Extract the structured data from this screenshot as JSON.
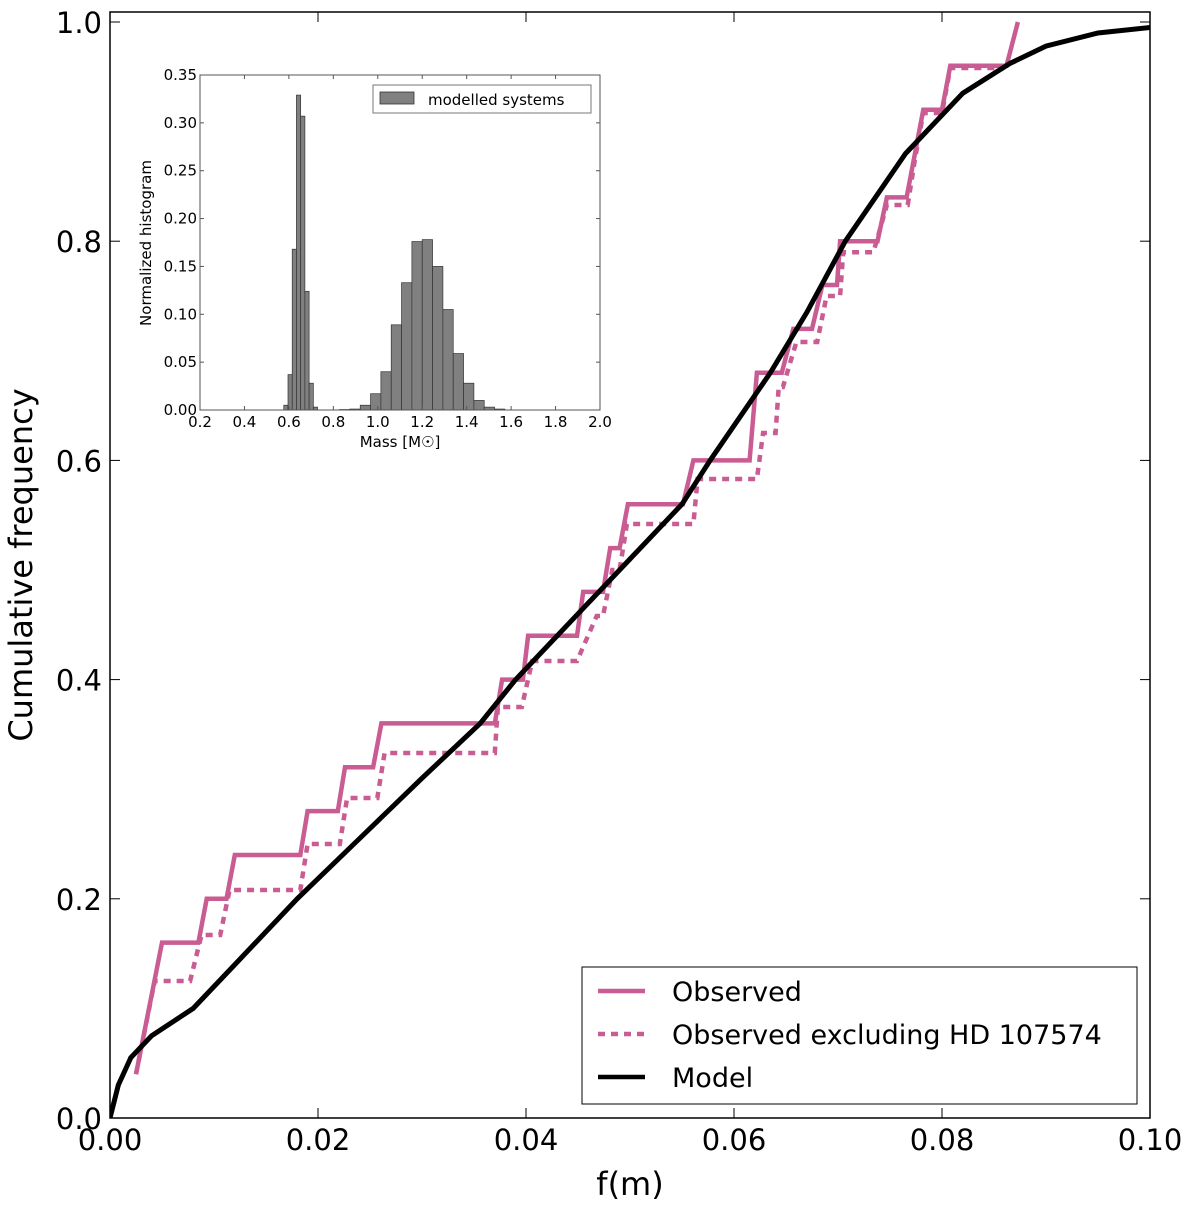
{
  "chart_data": [
    {
      "type": "line",
      "title": "",
      "xlabel": "f(m)",
      "ylabel": "Cumulative frequency",
      "xlim": [
        0,
        0.1
      ],
      "ylim": [
        0,
        1.0
      ],
      "xticks": [
        "0.00",
        "0.02",
        "0.04",
        "0.06",
        "0.08",
        "0.10"
      ],
      "yticks": [
        "0.0",
        "0.2",
        "0.4",
        "0.6",
        "0.8",
        "1.0"
      ],
      "grid": false,
      "legend_position": "bottom-right",
      "series": [
        {
          "name": "Observed",
          "style": "solid",
          "color": "#c95c92",
          "points": [
            [
              0.0025,
              0.04
            ],
            [
              0.005,
              0.16
            ],
            [
              0.0085,
              0.16
            ],
            [
              0.0093,
              0.2
            ],
            [
              0.0112,
              0.2
            ],
            [
              0.012,
              0.24
            ],
            [
              0.0183,
              0.24
            ],
            [
              0.019,
              0.28
            ],
            [
              0.0219,
              0.28
            ],
            [
              0.0226,
              0.32
            ],
            [
              0.0253,
              0.32
            ],
            [
              0.0261,
              0.36
            ],
            [
              0.037,
              0.36
            ],
            [
              0.0377,
              0.4
            ],
            [
              0.0397,
              0.4
            ],
            [
              0.0402,
              0.44
            ],
            [
              0.0449,
              0.44
            ],
            [
              0.0455,
              0.48
            ],
            [
              0.0474,
              0.48
            ],
            [
              0.0481,
              0.52
            ],
            [
              0.049,
              0.52
            ],
            [
              0.0498,
              0.56
            ],
            [
              0.0551,
              0.56
            ],
            [
              0.0561,
              0.6
            ],
            [
              0.0615,
              0.6
            ],
            [
              0.0622,
              0.68
            ],
            [
              0.0646,
              0.68
            ],
            [
              0.0657,
              0.72
            ],
            [
              0.0675,
              0.72
            ],
            [
              0.0685,
              0.76
            ],
            [
              0.0699,
              0.76
            ],
            [
              0.0702,
              0.8
            ],
            [
              0.0738,
              0.8
            ],
            [
              0.0747,
              0.84
            ],
            [
              0.0766,
              0.84
            ],
            [
              0.0782,
              0.92
            ],
            [
              0.08,
              0.92
            ],
            [
              0.0808,
              0.96
            ],
            [
              0.0862,
              0.96
            ],
            [
              0.0873,
              1.0
            ]
          ]
        },
        {
          "name": "Observed excluding HD 107574",
          "style": "dashed",
          "color": "#c95c92",
          "points": [
            [
              0.0025,
              0.04
            ],
            [
              0.0043,
              0.125
            ],
            [
              0.0077,
              0.125
            ],
            [
              0.0088,
              0.167
            ],
            [
              0.0106,
              0.167
            ],
            [
              0.0115,
              0.208
            ],
            [
              0.0183,
              0.208
            ],
            [
              0.019,
              0.25
            ],
            [
              0.0221,
              0.25
            ],
            [
              0.0228,
              0.292
            ],
            [
              0.0257,
              0.292
            ],
            [
              0.0264,
              0.333
            ],
            [
              0.037,
              0.333
            ],
            [
              0.0373,
              0.375
            ],
            [
              0.0396,
              0.375
            ],
            [
              0.0406,
              0.417
            ],
            [
              0.0449,
              0.417
            ],
            [
              0.0468,
              0.458
            ],
            [
              0.0474,
              0.458
            ],
            [
              0.0483,
              0.5
            ],
            [
              0.049,
              0.5
            ],
            [
              0.0497,
              0.542
            ],
            [
              0.0561,
              0.542
            ],
            [
              0.0565,
              0.583
            ],
            [
              0.0622,
              0.583
            ],
            [
              0.0628,
              0.625
            ],
            [
              0.064,
              0.625
            ],
            [
              0.0643,
              0.667
            ],
            [
              0.0647,
              0.667
            ],
            [
              0.066,
              0.708
            ],
            [
              0.068,
              0.708
            ],
            [
              0.0689,
              0.75
            ],
            [
              0.0702,
              0.75
            ],
            [
              0.0705,
              0.79
            ],
            [
              0.0734,
              0.79
            ],
            [
              0.0747,
              0.833
            ],
            [
              0.0767,
              0.833
            ],
            [
              0.0774,
              0.875
            ],
            [
              0.0782,
              0.917
            ],
            [
              0.08,
              0.917
            ],
            [
              0.0808,
              0.958
            ],
            [
              0.0856,
              0.958
            ]
          ]
        },
        {
          "name": "Model",
          "style": "solid",
          "color": "#000000",
          "points": [
            [
              0,
              0
            ],
            [
              0.0008,
              0.03
            ],
            [
              0.002,
              0.055
            ],
            [
              0.004,
              0.075
            ],
            [
              0.008,
              0.1
            ],
            [
              0.012,
              0.14
            ],
            [
              0.018,
              0.2
            ],
            [
              0.024,
              0.255
            ],
            [
              0.03,
              0.31
            ],
            [
              0.0356,
              0.36
            ],
            [
              0.039,
              0.4
            ],
            [
              0.045,
              0.46
            ],
            [
              0.05,
              0.51
            ],
            [
              0.055,
              0.56
            ],
            [
              0.0577,
              0.6
            ],
            [
              0.0635,
              0.68
            ],
            [
              0.067,
              0.735
            ],
            [
              0.0707,
              0.8
            ],
            [
              0.0765,
              0.88
            ],
            [
              0.082,
              0.935
            ],
            [
              0.0865,
              0.962
            ],
            [
              0.09,
              0.978
            ],
            [
              0.095,
              0.99
            ],
            [
              0.1,
              0.995
            ]
          ]
        }
      ]
    },
    {
      "type": "bar",
      "title": "",
      "xlabel": "Mass [M☉]",
      "xlabel_text": "Mass [M",
      "xlabel_sub": "☉",
      "xlabel_end": "]",
      "ylabel": "Normalized histogram",
      "xlim": [
        0.2,
        2.0
      ],
      "ylim": [
        0,
        0.35
      ],
      "xticks": [
        "0.2",
        "0.4",
        "0.6",
        "0.8",
        "1.0",
        "1.2",
        "1.4",
        "1.6",
        "1.8",
        "2.0"
      ],
      "yticks": [
        "0.00",
        "0.05",
        "0.10",
        "0.15",
        "0.20",
        "0.25",
        "0.30",
        "0.35"
      ],
      "legend_position": "top-right",
      "legend": "modelled systems",
      "bar_color": "#808080",
      "bins": [
        {
          "left": 0.577,
          "width": 0.019,
          "value": 0.005
        },
        {
          "left": 0.596,
          "width": 0.019,
          "value": 0.037
        },
        {
          "left": 0.615,
          "width": 0.019,
          "value": 0.168
        },
        {
          "left": 0.634,
          "width": 0.019,
          "value": 0.329
        },
        {
          "left": 0.653,
          "width": 0.019,
          "value": 0.307
        },
        {
          "left": 0.672,
          "width": 0.019,
          "value": 0.124
        },
        {
          "left": 0.691,
          "width": 0.019,
          "value": 0.028
        },
        {
          "left": 0.71,
          "width": 0.019,
          "value": 0.003
        },
        {
          "left": 0.828,
          "width": 0.0465,
          "value": 0.0005
        },
        {
          "left": 0.8745,
          "width": 0.0465,
          "value": 0.001
        },
        {
          "left": 0.921,
          "width": 0.0465,
          "value": 0.005
        },
        {
          "left": 0.9675,
          "width": 0.0465,
          "value": 0.017
        },
        {
          "left": 1.014,
          "width": 0.0465,
          "value": 0.04
        },
        {
          "left": 1.0605,
          "width": 0.0465,
          "value": 0.089
        },
        {
          "left": 1.107,
          "width": 0.0465,
          "value": 0.133
        },
        {
          "left": 1.1535,
          "width": 0.0465,
          "value": 0.176
        },
        {
          "left": 1.2,
          "width": 0.0465,
          "value": 0.178
        },
        {
          "left": 1.2465,
          "width": 0.0465,
          "value": 0.15
        },
        {
          "left": 1.293,
          "width": 0.0465,
          "value": 0.105
        },
        {
          "left": 1.3395,
          "width": 0.0465,
          "value": 0.059
        },
        {
          "left": 1.386,
          "width": 0.0465,
          "value": 0.028
        },
        {
          "left": 1.4325,
          "width": 0.0465,
          "value": 0.01
        },
        {
          "left": 1.479,
          "width": 0.0465,
          "value": 0.003
        },
        {
          "left": 1.5255,
          "width": 0.0465,
          "value": 0.001
        }
      ]
    }
  ]
}
